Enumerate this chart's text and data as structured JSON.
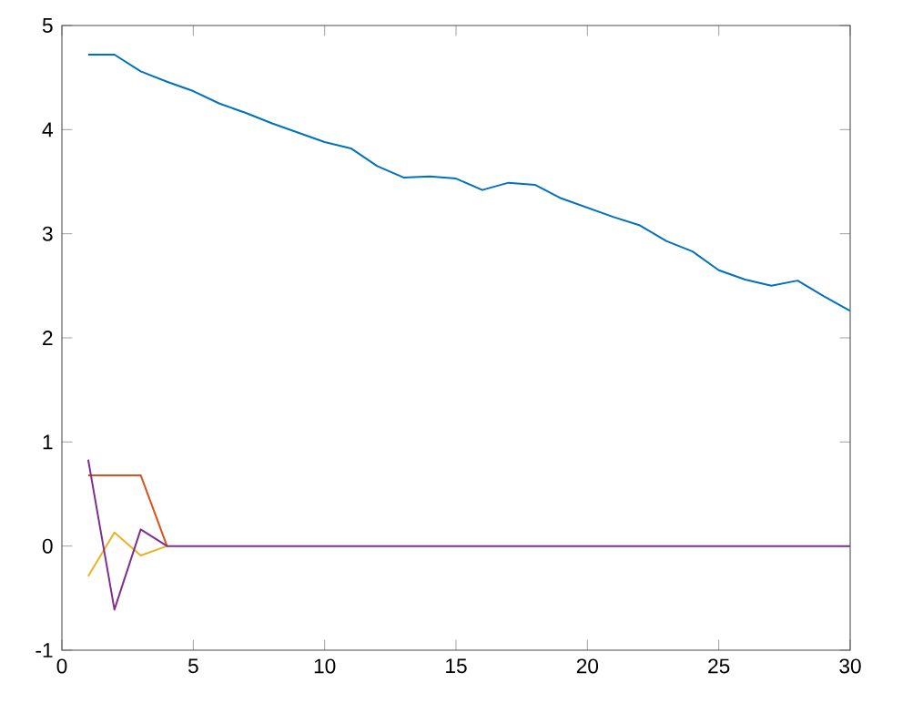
{
  "chart_data": {
    "type": "line",
    "x": [
      1,
      2,
      3,
      4,
      5,
      6,
      7,
      8,
      9,
      10,
      11,
      12,
      13,
      14,
      15,
      16,
      17,
      18,
      19,
      20,
      21,
      22,
      23,
      24,
      25,
      26,
      27,
      28,
      29,
      30
    ],
    "series": [
      {
        "color": "#0072bd",
        "values": [
          4.72,
          4.72,
          4.56,
          4.46,
          4.37,
          4.25,
          4.16,
          4.06,
          3.97,
          3.88,
          3.82,
          3.65,
          3.54,
          3.55,
          3.53,
          3.42,
          3.49,
          3.47,
          3.34,
          3.25,
          3.16,
          3.08,
          2.93,
          2.83,
          2.65,
          2.56,
          2.5,
          2.55,
          2.4,
          2.26
        ]
      },
      {
        "color": "#d95319",
        "values": [
          0.68,
          0.68,
          0.68,
          0,
          null,
          null,
          null,
          null,
          null,
          null,
          null,
          null,
          null,
          null,
          null,
          null,
          null,
          null,
          null,
          null,
          null,
          null,
          null,
          null,
          null,
          null,
          null,
          null,
          null,
          null
        ]
      },
      {
        "color": "#edb120",
        "values": [
          -0.29,
          0.13,
          -0.09,
          0,
          null,
          null,
          null,
          null,
          null,
          null,
          null,
          null,
          null,
          null,
          null,
          null,
          null,
          null,
          null,
          null,
          null,
          null,
          null,
          null,
          null,
          null,
          null,
          null,
          null,
          null
        ]
      },
      {
        "color": "#7e2f8e",
        "values": [
          0.83,
          -0.61,
          0.16,
          0,
          0,
          0,
          0,
          0,
          0,
          0,
          0,
          0,
          0,
          0,
          0,
          0,
          0,
          0,
          0,
          0,
          0,
          0,
          0,
          0,
          0,
          0,
          0,
          0,
          0,
          0
        ]
      }
    ],
    "xlim": [
      0,
      30
    ],
    "ylim": [
      -1,
      5
    ],
    "xticks": [
      0,
      5,
      10,
      15,
      20,
      25,
      30
    ],
    "yticks": [
      -1,
      0,
      1,
      2,
      3,
      4,
      5
    ],
    "grid": false,
    "marker": "none",
    "line_style": "solid"
  }
}
